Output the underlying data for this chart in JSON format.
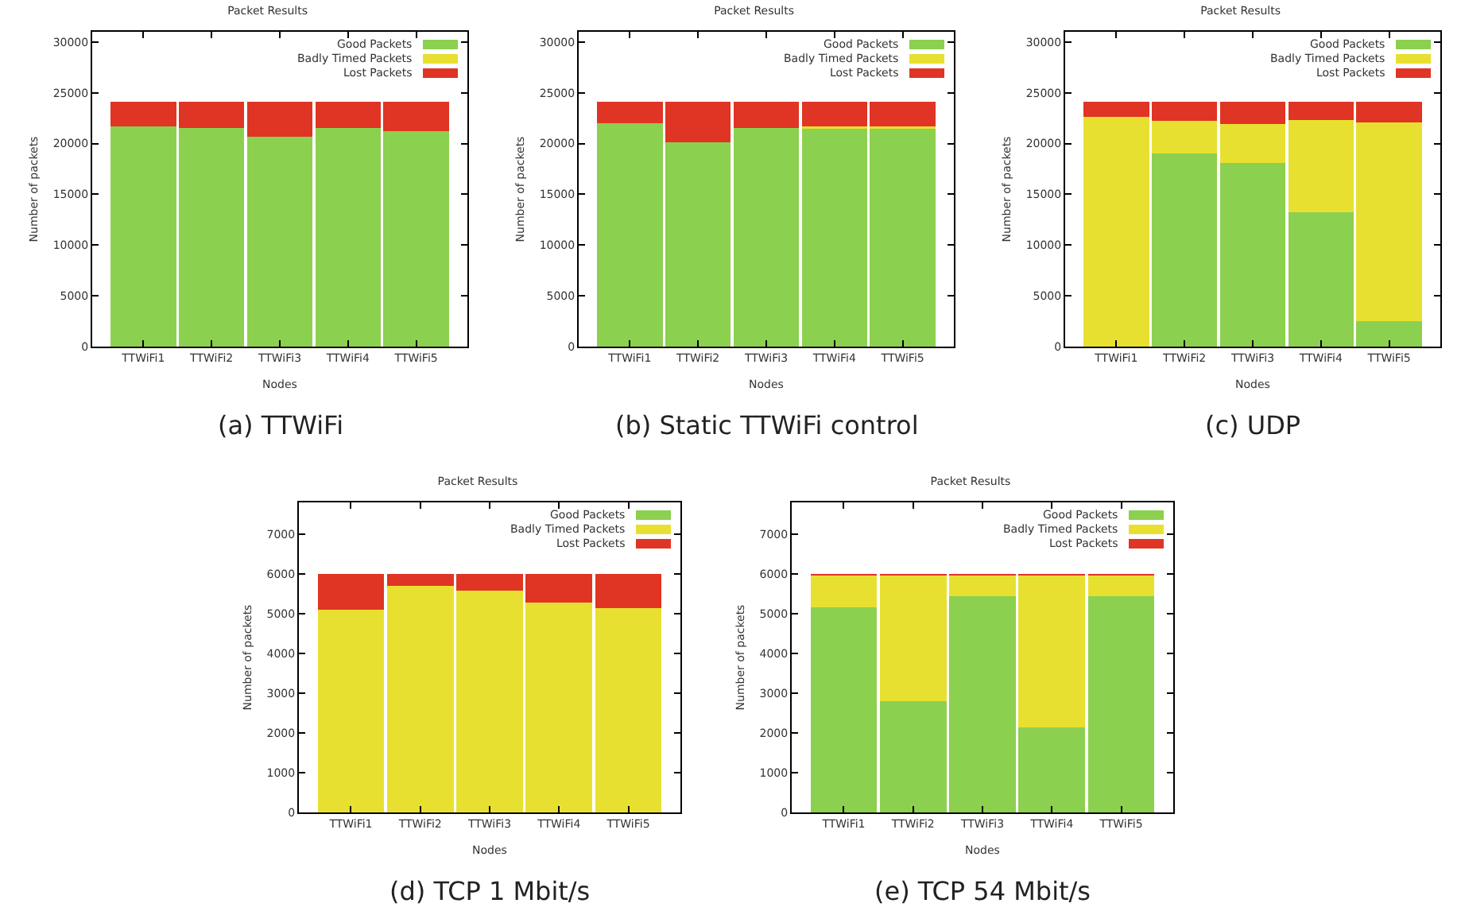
{
  "chart_data": [
    {
      "type": "bar",
      "title": "Packet Results",
      "xlabel": "Nodes",
      "ylabel": "Number of packets",
      "annotations": [
        "(a) TTWiFi"
      ],
      "categories": [
        "TTWiFi1",
        "TTWiFi2",
        "TTWiFi3",
        "TTWiFi4",
        "TTWiFi5"
      ],
      "stacked": true,
      "legend": "top right",
      "grid": false,
      "ylim": [
        0,
        31000
      ],
      "yticks": [
        0,
        5000,
        10000,
        15000,
        20000,
        25000,
        30000
      ],
      "series": [
        {
          "name": "Good Packets",
          "color": "#8cd04f",
          "values": [
            21700,
            21500,
            20700,
            21500,
            21200
          ]
        },
        {
          "name": "Badly Timed Packets",
          "color": "#e8e030",
          "values": [
            0,
            0,
            0,
            0,
            0
          ]
        },
        {
          "name": "Lost Packets",
          "color": "#e03424",
          "values": [
            2400,
            2600,
            3400,
            2600,
            2900
          ]
        }
      ]
    },
    {
      "type": "bar",
      "title": "Packet Results",
      "xlabel": "Nodes",
      "ylabel": "Number of packets",
      "annotations": [
        "(b) Static TTWiFi control"
      ],
      "categories": [
        "TTWiFi1",
        "TTWiFi2",
        "TTWiFi3",
        "TTWiFi4",
        "TTWiFi5"
      ],
      "stacked": true,
      "legend": "top right",
      "grid": false,
      "ylim": [
        0,
        31000
      ],
      "yticks": [
        0,
        5000,
        10000,
        15000,
        20000,
        25000,
        30000
      ],
      "series": [
        {
          "name": "Good Packets",
          "color": "#8cd04f",
          "values": [
            22000,
            20100,
            21500,
            21600,
            21600
          ]
        },
        {
          "name": "Badly Timed Packets",
          "color": "#e8e030",
          "values": [
            0,
            0,
            0,
            100,
            100
          ]
        },
        {
          "name": "Lost Packets",
          "color": "#e03424",
          "values": [
            2100,
            4000,
            2600,
            2400,
            2400
          ]
        }
      ]
    },
    {
      "type": "bar",
      "title": "Packet Results",
      "xlabel": "Nodes",
      "ylabel": "Number of packets",
      "annotations": [
        "(c) UDP"
      ],
      "categories": [
        "TTWiFi1",
        "TTWiFi2",
        "TTWiFi3",
        "TTWiFi4",
        "TTWiFi5"
      ],
      "stacked": true,
      "legend": "top right",
      "grid": false,
      "ylim": [
        0,
        31000
      ],
      "yticks": [
        0,
        5000,
        10000,
        15000,
        20000,
        25000,
        30000
      ],
      "series": [
        {
          "name": "Good Packets",
          "color": "#8cd04f",
          "values": [
            0,
            19000,
            18100,
            13200,
            2500
          ]
        },
        {
          "name": "Badly Timed Packets",
          "color": "#e8e030",
          "values": [
            22600,
            3200,
            3800,
            9100,
            19600
          ]
        },
        {
          "name": "Lost Packets",
          "color": "#e03424",
          "values": [
            1500,
            1900,
            2200,
            1800,
            2000
          ]
        }
      ]
    },
    {
      "type": "bar",
      "title": "Packet Results",
      "xlabel": "Nodes",
      "ylabel": "Number of packets",
      "annotations": [
        "(d) TCP 1 Mbit/s"
      ],
      "categories": [
        "TTWiFi1",
        "TTWiFi2",
        "TTWiFi3",
        "TTWiFi4",
        "TTWiFi5"
      ],
      "stacked": true,
      "legend": "top right",
      "grid": false,
      "ylim": [
        0,
        7800
      ],
      "yticks": [
        0,
        1000,
        2000,
        3000,
        4000,
        5000,
        6000,
        7000
      ],
      "series": [
        {
          "name": "Good Packets",
          "color": "#8cd04f",
          "values": [
            0,
            0,
            0,
            0,
            0
          ]
        },
        {
          "name": "Badly Timed Packets",
          "color": "#e8e030",
          "values": [
            5100,
            5700,
            5580,
            5280,
            5150
          ]
        },
        {
          "name": "Lost Packets",
          "color": "#e03424",
          "values": [
            900,
            300,
            420,
            720,
            850
          ]
        }
      ]
    },
    {
      "type": "bar",
      "title": "Packet Results",
      "xlabel": "Nodes",
      "ylabel": "Number of packets",
      "annotations": [
        "(e) TCP 54 Mbit/s"
      ],
      "categories": [
        "TTWiFi1",
        "TTWiFi2",
        "TTWiFi3",
        "TTWiFi4",
        "TTWiFi5"
      ],
      "stacked": true,
      "legend": "top right",
      "grid": false,
      "ylim": [
        0,
        7800
      ],
      "yticks": [
        0,
        1000,
        2000,
        3000,
        4000,
        5000,
        6000,
        7000
      ],
      "series": [
        {
          "name": "Good Packets",
          "color": "#8cd04f",
          "values": [
            5170,
            2800,
            5450,
            2150,
            5440
          ]
        },
        {
          "name": "Badly Timed Packets",
          "color": "#e8e030",
          "values": [
            800,
            3170,
            520,
            3820,
            530
          ]
        },
        {
          "name": "Lost Packets",
          "color": "#e03424",
          "values": [
            30,
            30,
            30,
            30,
            30
          ]
        }
      ]
    }
  ]
}
